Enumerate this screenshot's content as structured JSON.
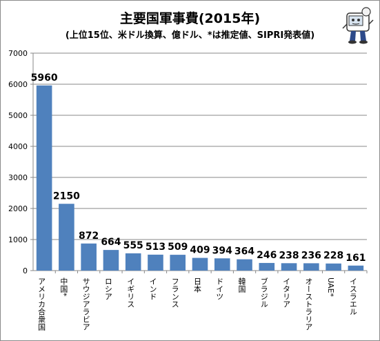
{
  "chart_data": {
    "type": "bar",
    "title": "主要国軍事費(2015年)",
    "subtitle": "(上位15位、米ドル換算、億ドル、*は推定値、SIPRI発表値)",
    "categories": [
      "アメリカ合衆国",
      "中国*",
      "サウジアラビア",
      "ロシア",
      "イギリス",
      "インド",
      "フランス",
      "日本",
      "ドイツ",
      "韓国",
      "ブラジル",
      "イタリア",
      "オーストラリア",
      "UAE*",
      "イスラエル"
    ],
    "values": [
      5960,
      2150,
      872,
      664,
      555,
      513,
      509,
      409,
      394,
      364,
      246,
      238,
      236,
      228,
      161
    ],
    "value_labels": [
      "5960",
      "2150",
      "872",
      "664",
      "555",
      "513",
      "509",
      "409",
      "394",
      "364",
      "246",
      "238",
      "236",
      "228",
      "161"
    ],
    "y_ticks": [
      "0",
      "1000",
      "2000",
      "3000",
      "4000",
      "5000",
      "6000",
      "7000"
    ],
    "ylim": [
      0,
      7000
    ],
    "grid": true,
    "legend": "none",
    "bar_color": "#4f81bd",
    "grid_color": "#878787"
  }
}
